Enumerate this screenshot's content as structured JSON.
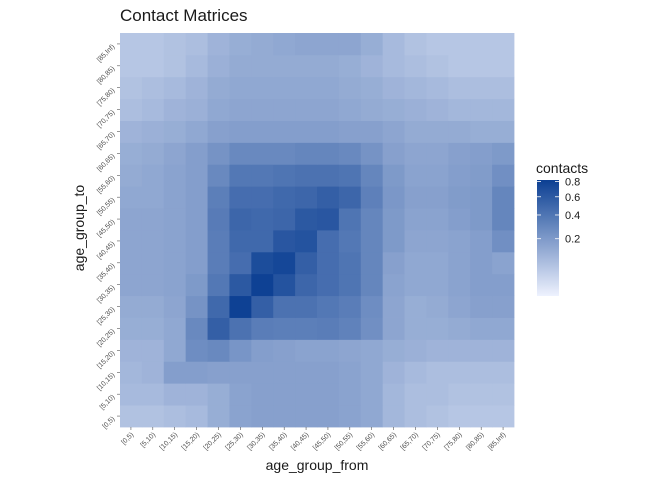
{
  "chart_data": {
    "type": "heatmap",
    "title": "Contact Matrices",
    "xlabel": "age_group_from",
    "ylabel": "age_group_to",
    "x_categories": [
      "[0,5)",
      "[5,10)",
      "[10,15)",
      "[15,20)",
      "[20,25)",
      "[25,30)",
      "[30,35)",
      "[35,40)",
      "[40,45)",
      "[45,50)",
      "[50,55)",
      "[55,60)",
      "[60,65)",
      "[65,70)",
      "[70,75)",
      "[75,80)",
      "[80,85)",
      "[85,Inf)"
    ],
    "y_categories": [
      "[0,5)",
      "[5,10)",
      "[10,15)",
      "[15,20)",
      "[20,25)",
      "[25,30)",
      "[30,35)",
      "[35,40)",
      "[40,45)",
      "[45,50)",
      "[50,55)",
      "[55,60)",
      "[60,65)",
      "[65,70)",
      "[70,75)",
      "[75,80)",
      "[80,85)",
      "[85,Inf)"
    ],
    "values": [
      [
        0.06,
        0.06,
        0.07,
        0.08,
        0.12,
        0.16,
        0.17,
        0.17,
        0.17,
        0.17,
        0.16,
        0.14,
        0.09,
        0.07,
        0.06,
        0.05,
        0.05,
        0.05
      ],
      [
        0.08,
        0.08,
        0.1,
        0.1,
        0.12,
        0.16,
        0.17,
        0.17,
        0.17,
        0.17,
        0.16,
        0.14,
        0.09,
        0.07,
        0.07,
        0.06,
        0.06,
        0.06
      ],
      [
        0.09,
        0.1,
        0.18,
        0.18,
        0.17,
        0.17,
        0.17,
        0.17,
        0.17,
        0.17,
        0.16,
        0.14,
        0.1,
        0.08,
        0.07,
        0.07,
        0.07,
        0.07
      ],
      [
        0.1,
        0.1,
        0.14,
        0.26,
        0.28,
        0.22,
        0.18,
        0.17,
        0.16,
        0.16,
        0.15,
        0.14,
        0.12,
        0.11,
        0.1,
        0.1,
        0.1,
        0.1
      ],
      [
        0.12,
        0.12,
        0.14,
        0.28,
        0.55,
        0.42,
        0.35,
        0.34,
        0.34,
        0.35,
        0.32,
        0.25,
        0.15,
        0.12,
        0.12,
        0.13,
        0.14,
        0.14
      ],
      [
        0.13,
        0.13,
        0.15,
        0.23,
        0.48,
        0.8,
        0.55,
        0.42,
        0.42,
        0.38,
        0.35,
        0.26,
        0.15,
        0.12,
        0.13,
        0.15,
        0.17,
        0.17
      ],
      [
        0.15,
        0.15,
        0.16,
        0.2,
        0.38,
        0.6,
        0.8,
        0.65,
        0.5,
        0.45,
        0.4,
        0.3,
        0.16,
        0.14,
        0.14,
        0.16,
        0.18,
        0.18
      ],
      [
        0.15,
        0.15,
        0.16,
        0.18,
        0.35,
        0.45,
        0.7,
        0.75,
        0.55,
        0.45,
        0.4,
        0.3,
        0.17,
        0.14,
        0.14,
        0.16,
        0.18,
        0.16
      ],
      [
        0.15,
        0.15,
        0.16,
        0.18,
        0.35,
        0.48,
        0.48,
        0.62,
        0.65,
        0.45,
        0.38,
        0.3,
        0.2,
        0.15,
        0.15,
        0.16,
        0.18,
        0.25
      ],
      [
        0.15,
        0.15,
        0.16,
        0.18,
        0.36,
        0.5,
        0.48,
        0.5,
        0.6,
        0.62,
        0.4,
        0.3,
        0.2,
        0.16,
        0.16,
        0.18,
        0.2,
        0.3
      ],
      [
        0.14,
        0.14,
        0.16,
        0.18,
        0.34,
        0.45,
        0.45,
        0.48,
        0.5,
        0.55,
        0.5,
        0.33,
        0.21,
        0.17,
        0.17,
        0.19,
        0.2,
        0.3
      ],
      [
        0.13,
        0.14,
        0.16,
        0.18,
        0.28,
        0.38,
        0.38,
        0.4,
        0.42,
        0.42,
        0.4,
        0.3,
        0.2,
        0.16,
        0.16,
        0.18,
        0.19,
        0.25
      ],
      [
        0.12,
        0.13,
        0.15,
        0.18,
        0.23,
        0.28,
        0.28,
        0.28,
        0.3,
        0.3,
        0.28,
        0.23,
        0.17,
        0.15,
        0.15,
        0.17,
        0.18,
        0.2
      ],
      [
        0.1,
        0.11,
        0.12,
        0.14,
        0.17,
        0.18,
        0.18,
        0.18,
        0.18,
        0.18,
        0.17,
        0.17,
        0.15,
        0.13,
        0.13,
        0.13,
        0.12,
        0.12
      ],
      [
        0.07,
        0.08,
        0.1,
        0.11,
        0.14,
        0.15,
        0.15,
        0.15,
        0.15,
        0.15,
        0.14,
        0.13,
        0.12,
        0.11,
        0.1,
        0.09,
        0.09,
        0.09
      ],
      [
        0.06,
        0.07,
        0.08,
        0.1,
        0.13,
        0.14,
        0.14,
        0.14,
        0.14,
        0.14,
        0.13,
        0.12,
        0.1,
        0.09,
        0.08,
        0.07,
        0.07,
        0.07
      ],
      [
        0.05,
        0.05,
        0.06,
        0.08,
        0.11,
        0.13,
        0.13,
        0.13,
        0.13,
        0.13,
        0.12,
        0.1,
        0.08,
        0.07,
        0.06,
        0.05,
        0.05,
        0.05
      ],
      [
        0.05,
        0.05,
        0.06,
        0.07,
        0.1,
        0.12,
        0.13,
        0.14,
        0.15,
        0.15,
        0.15,
        0.12,
        0.08,
        0.06,
        0.05,
        0.05,
        0.05,
        0.05
      ]
    ],
    "values_layout": "rows ordered by y_categories (bottom to top), columns by x_categories",
    "color_scale": {
      "scale": "sqrt",
      "min": 0,
      "max": 0.82,
      "low_color": "#eef2fe",
      "high_color": "#0b3f93"
    },
    "legend": {
      "title": "contacts",
      "ticks": [
        "0.8",
        "0.6",
        "0.4",
        "0.2"
      ],
      "tick_values": [
        0.8,
        0.6,
        0.4,
        0.2
      ],
      "position": "right"
    },
    "grid": false
  }
}
